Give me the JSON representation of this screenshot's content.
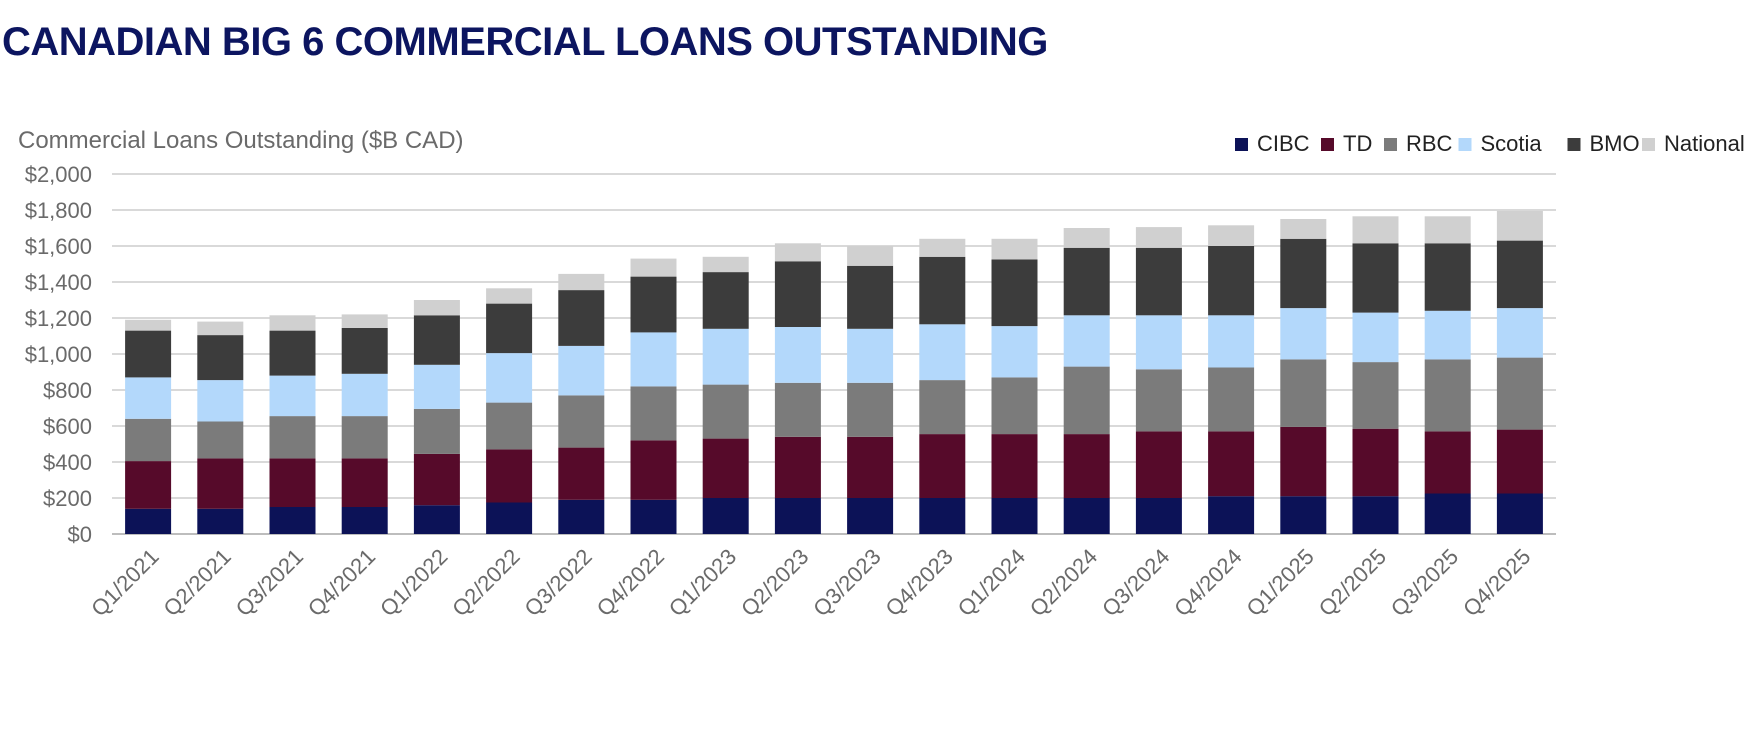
{
  "page_title": "CANADIAN BIG 6 COMMERCIAL LOANS OUTSTANDING",
  "chart_data": {
    "type": "bar",
    "stacked": true,
    "title": "Commercial Loans Outstanding ($B CAD)",
    "xlabel": "",
    "ylabel": "",
    "ylim": [
      0,
      2000
    ],
    "yticks": [
      0,
      200,
      400,
      600,
      800,
      1000,
      1200,
      1400,
      1600,
      1800,
      2000
    ],
    "ytick_labels": [
      "$0",
      "$200",
      "$400",
      "$600",
      "$800",
      "$1,000",
      "$1,200",
      "$1,400",
      "$1,600",
      "$1,800",
      "$2,000"
    ],
    "grid": "horizontal",
    "legend_position": "top-right",
    "categories": [
      "Q1/2021",
      "Q2/2021",
      "Q3/2021",
      "Q4/2021",
      "Q1/2022",
      "Q2/2022",
      "Q3/2022",
      "Q4/2022",
      "Q1/2023",
      "Q2/2023",
      "Q3/2023",
      "Q4/2023",
      "Q1/2024",
      "Q2/2024",
      "Q3/2024",
      "Q4/2024",
      "Q1/2025",
      "Q2/2025",
      "Q3/2025",
      "Q4/2025"
    ],
    "series": [
      {
        "name": "CIBC",
        "color": "#0c1257",
        "values": [
          140,
          140,
          150,
          150,
          160,
          175,
          190,
          190,
          200,
          200,
          200,
          200,
          200,
          200,
          200,
          210,
          210,
          210,
          225,
          225
        ]
      },
      {
        "name": "TD",
        "color": "#560a2a",
        "values": [
          265,
          280,
          270,
          270,
          285,
          295,
          290,
          330,
          330,
          340,
          340,
          355,
          355,
          355,
          370,
          360,
          385,
          375,
          345,
          355
        ]
      },
      {
        "name": "RBC",
        "color": "#7b7b7b",
        "values": [
          235,
          205,
          235,
          235,
          250,
          260,
          290,
          300,
          300,
          300,
          300,
          300,
          315,
          375,
          345,
          355,
          375,
          370,
          400,
          400
        ]
      },
      {
        "name": "Scotia",
        "color": "#b3d8fb",
        "values": [
          230,
          230,
          225,
          235,
          245,
          275,
          275,
          300,
          310,
          310,
          300,
          310,
          285,
          285,
          300,
          290,
          285,
          275,
          270,
          275
        ]
      },
      {
        "name": "BMO",
        "color": "#3c3c3c",
        "values": [
          260,
          250,
          250,
          255,
          275,
          275,
          310,
          310,
          315,
          365,
          350,
          375,
          370,
          375,
          375,
          385,
          385,
          385,
          375,
          375
        ]
      },
      {
        "name": "National",
        "color": "#d0d0d0",
        "values": [
          60,
          75,
          85,
          75,
          85,
          85,
          90,
          100,
          85,
          100,
          110,
          100,
          115,
          110,
          115,
          115,
          110,
          150,
          150,
          165
        ]
      }
    ]
  }
}
